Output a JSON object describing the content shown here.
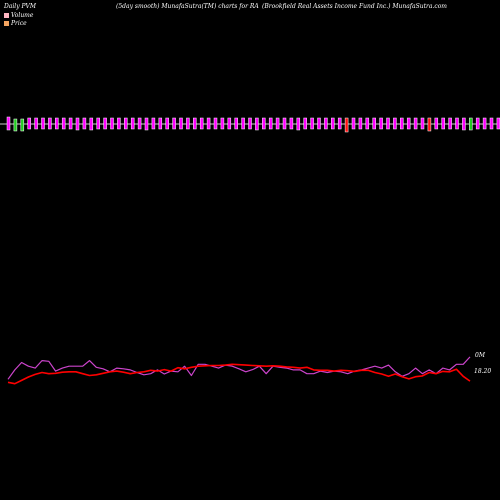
{
  "header": {
    "left": "Daily PVM",
    "center": "(5day smooth) MunafaSutra(TM) charts for RA",
    "right": "(Brookfield Real Assets Income   Fund Inc.) MunafaSutra.com"
  },
  "legend": {
    "volume_label": "Volume",
    "price_label": "Price",
    "volume_color": "#ffb6c1",
    "price_color": "#f4a460"
  },
  "labels": {
    "volume_value": "0M",
    "price_value": "18.20"
  },
  "colors": {
    "background": "#000000",
    "axis": "#cccccc",
    "up_bar": "#ff00ff",
    "down_bar_red": "#ff1010",
    "down_bar_green": "#22cc22",
    "bar_edge": "#ffffff",
    "price_line": "#ff0000",
    "smooth_line": "#cc44cc"
  },
  "chart_data": {
    "type": "bar",
    "title": "",
    "bar_colors": [
      "m",
      "g",
      "g",
      "m",
      "m",
      "m",
      "m",
      "m",
      "m",
      "m",
      "m",
      "m",
      "m",
      "m",
      "m",
      "m",
      "m",
      "m",
      "m",
      "m",
      "m",
      "m",
      "m",
      "m",
      "m",
      "m",
      "m",
      "m",
      "m",
      "m",
      "m",
      "m",
      "m",
      "m",
      "m",
      "m",
      "m",
      "m",
      "m",
      "m",
      "m",
      "m",
      "m",
      "m",
      "m",
      "m",
      "m",
      "m",
      "m",
      "r",
      "m",
      "m",
      "m",
      "m",
      "m",
      "m",
      "m",
      "m",
      "m",
      "m",
      "m",
      "r",
      "m",
      "m",
      "m",
      "m",
      "m",
      "g",
      "m",
      "m",
      "m",
      "m",
      "m",
      "m",
      "g",
      "g",
      "m",
      "m",
      "g",
      "m",
      "r"
    ],
    "bar_up": [
      7,
      5,
      5,
      6,
      6,
      6,
      6,
      6,
      6,
      6,
      6,
      6,
      6,
      6,
      6,
      6,
      6,
      6,
      6,
      6,
      6,
      6,
      6,
      6,
      6,
      6,
      6,
      6,
      6,
      6,
      6,
      6,
      6,
      6,
      6,
      6,
      6,
      6,
      6,
      6,
      6,
      6,
      6,
      6,
      6,
      6,
      6,
      6,
      6,
      6,
      6,
      6,
      6,
      6,
      6,
      6,
      6,
      6,
      6,
      6,
      6,
      6,
      6,
      6,
      6,
      6,
      6,
      6,
      6,
      6,
      6,
      6,
      6,
      6,
      6,
      6,
      6,
      6,
      6,
      6,
      7
    ],
    "bar_down": [
      6,
      7,
      7,
      5,
      5,
      5,
      5,
      5,
      5,
      5,
      6,
      5,
      6,
      5,
      5,
      5,
      5,
      5,
      5,
      5,
      6,
      5,
      5,
      5,
      5,
      5,
      5,
      5,
      5,
      5,
      5,
      5,
      5,
      5,
      5,
      5,
      6,
      5,
      5,
      5,
      5,
      5,
      6,
      5,
      5,
      5,
      5,
      5,
      5,
      8,
      5,
      5,
      5,
      5,
      5,
      5,
      5,
      5,
      5,
      5,
      5,
      7,
      5,
      5,
      5,
      5,
      6,
      6,
      5,
      5,
      5,
      5,
      5,
      6,
      7,
      7,
      6,
      5,
      7,
      5,
      7
    ],
    "price": [
      18.82,
      18.78,
      18.87,
      18.96,
      19.03,
      19.08,
      19.05,
      19.06,
      19.09,
      19.1,
      19.1,
      19.05,
      19.0,
      19.02,
      19.06,
      19.1,
      19.12,
      19.09,
      19.05,
      19.08,
      19.1,
      19.14,
      19.12,
      19.16,
      19.12,
      19.21,
      19.18,
      19.22,
      19.25,
      19.26,
      19.27,
      19.27,
      19.28,
      19.3,
      19.29,
      19.28,
      19.27,
      19.26,
      19.25,
      19.26,
      19.25,
      19.23,
      19.22,
      19.2,
      19.22,
      19.15,
      19.14,
      19.14,
      19.12,
      19.14,
      19.13,
      19.11,
      19.14,
      19.14,
      19.08,
      19.04,
      18.98,
      19.04,
      18.97,
      18.91,
      18.97,
      18.99,
      19.08,
      19.05,
      19.11,
      19.1,
      19.17,
      18.98,
      18.85
    ],
    "smooth": [
      18.9,
      19.15,
      19.35,
      19.25,
      19.2,
      19.4,
      19.38,
      19.12,
      19.2,
      19.25,
      19.25,
      19.25,
      19.4,
      19.22,
      19.18,
      19.1,
      19.2,
      19.18,
      19.15,
      19.08,
      19.02,
      19.05,
      19.15,
      19.04,
      19.12,
      19.1,
      19.25,
      19.0,
      19.3,
      19.3,
      19.25,
      19.2,
      19.28,
      19.25,
      19.18,
      19.1,
      19.16,
      19.25,
      19.05,
      19.25,
      19.22,
      19.2,
      19.15,
      19.15,
      19.05,
      19.05,
      19.12,
      19.08,
      19.12,
      19.1,
      19.05,
      19.12,
      19.15,
      19.2,
      19.25,
      19.2,
      19.28,
      19.1,
      18.98,
      19.05,
      19.2,
      19.05,
      19.15,
      19.05,
      19.2,
      19.15,
      19.3,
      19.3,
      19.5
    ]
  }
}
